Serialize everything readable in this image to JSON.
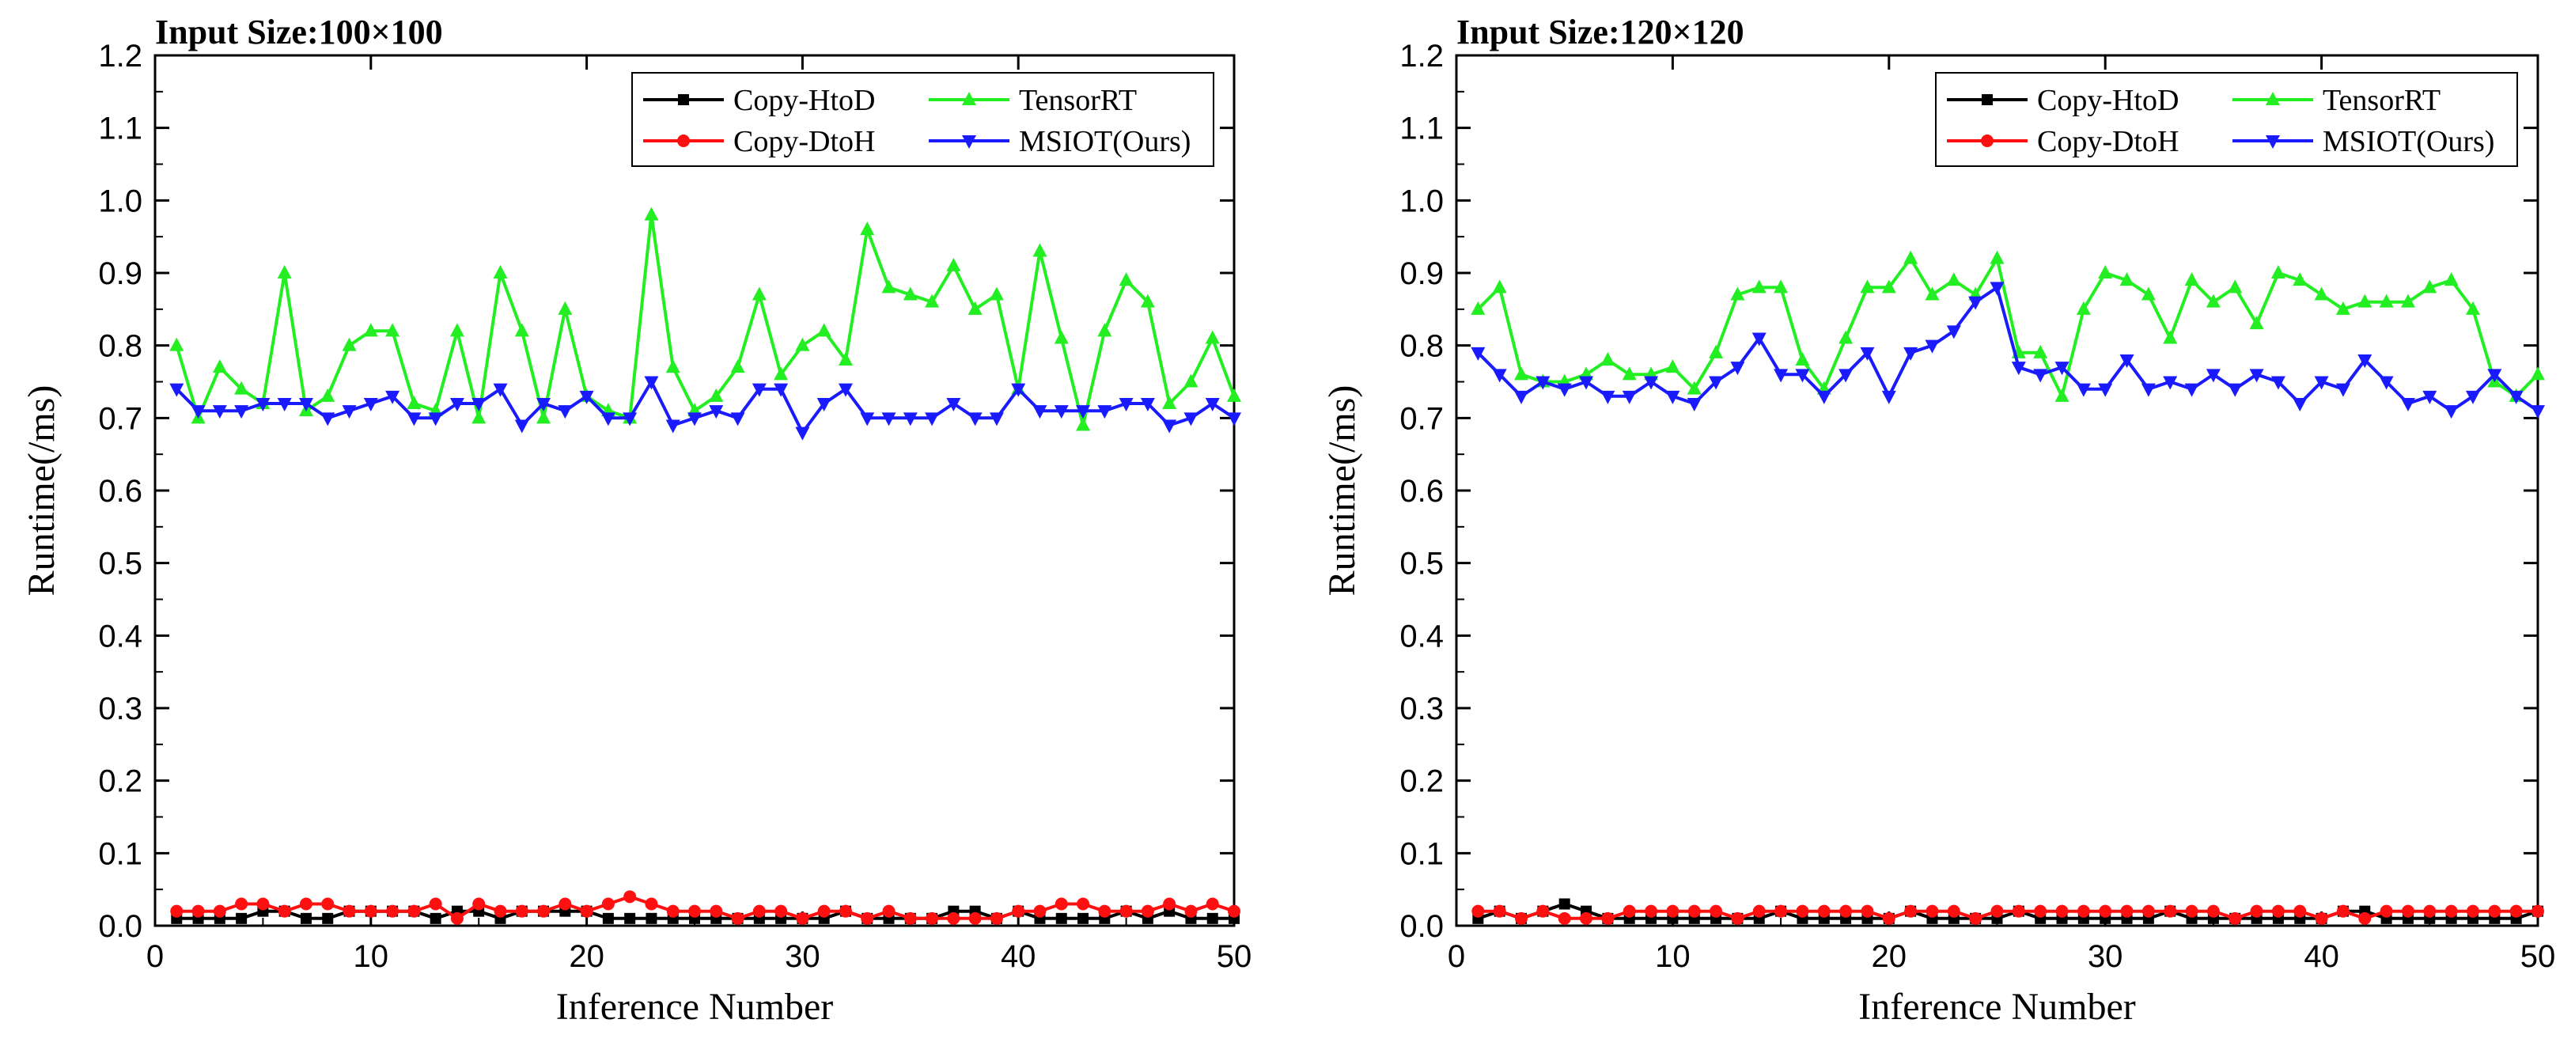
{
  "chart_data": [
    {
      "type": "line",
      "title": "Input Size:100×100",
      "xlabel": "Inference Number",
      "ylabel": "Runtime(/ms)",
      "xlim": [
        0,
        50
      ],
      "ylim": [
        0.0,
        1.2
      ],
      "xticks": [
        0,
        10,
        20,
        30,
        40,
        50
      ],
      "xtick_labels": [
        "0",
        "10",
        "20",
        "30",
        "40",
        "50"
      ],
      "yticks": [
        0.0,
        0.1,
        0.2,
        0.3,
        0.4,
        0.5,
        0.6,
        0.7,
        0.8,
        0.9,
        1.0,
        1.1,
        1.2
      ],
      "ytick_labels": [
        "0.0",
        "0.1",
        "0.2",
        "0.3",
        "0.4",
        "0.5",
        "0.6",
        "0.7",
        "0.8",
        "0.9",
        "1.0",
        "1.1",
        "1.2"
      ],
      "legend_position": "top-right",
      "legend_order": [
        0,
        2,
        1,
        3
      ],
      "x": [
        1,
        2,
        3,
        4,
        5,
        6,
        7,
        8,
        9,
        10,
        11,
        12,
        13,
        14,
        15,
        16,
        17,
        18,
        19,
        20,
        21,
        22,
        23,
        24,
        25,
        26,
        27,
        28,
        29,
        30,
        31,
        32,
        33,
        34,
        35,
        36,
        37,
        38,
        39,
        40,
        41,
        42,
        43,
        44,
        45,
        46,
        47,
        48,
        49,
        50
      ],
      "series": [
        {
          "name": "Copy-HtoD",
          "color": "#000000",
          "marker": "square",
          "values": [
            0.01,
            0.01,
            0.01,
            0.01,
            0.02,
            0.02,
            0.01,
            0.01,
            0.02,
            0.02,
            0.02,
            0.02,
            0.01,
            0.02,
            0.02,
            0.01,
            0.02,
            0.02,
            0.02,
            0.02,
            0.01,
            0.01,
            0.01,
            0.01,
            0.01,
            0.01,
            0.01,
            0.01,
            0.01,
            0.01,
            0.01,
            0.02,
            0.01,
            0.01,
            0.01,
            0.01,
            0.02,
            0.02,
            0.01,
            0.02,
            0.01,
            0.01,
            0.01,
            0.01,
            0.02,
            0.01,
            0.02,
            0.01,
            0.01,
            0.01
          ]
        },
        {
          "name": "TensorRT",
          "color": "#22ee22",
          "marker": "triangle-up",
          "values": [
            0.8,
            0.7,
            0.77,
            0.74,
            0.72,
            0.9,
            0.71,
            0.73,
            0.8,
            0.82,
            0.82,
            0.72,
            0.71,
            0.82,
            0.7,
            0.9,
            0.82,
            0.7,
            0.85,
            0.73,
            0.71,
            0.7,
            0.98,
            0.77,
            0.71,
            0.73,
            0.77,
            0.87,
            0.76,
            0.8,
            0.82,
            0.78,
            0.96,
            0.88,
            0.87,
            0.86,
            0.91,
            0.85,
            0.87,
            0.74,
            0.93,
            0.81,
            0.69,
            0.82,
            0.89,
            0.86,
            0.72,
            0.75,
            0.81,
            0.73
          ]
        },
        {
          "name": "Copy-DtoH",
          "color": "#ff1010",
          "marker": "circle",
          "values": [
            0.02,
            0.02,
            0.02,
            0.03,
            0.03,
            0.02,
            0.03,
            0.03,
            0.02,
            0.02,
            0.02,
            0.02,
            0.03,
            0.01,
            0.03,
            0.02,
            0.02,
            0.02,
            0.03,
            0.02,
            0.03,
            0.04,
            0.03,
            0.02,
            0.02,
            0.02,
            0.01,
            0.02,
            0.02,
            0.01,
            0.02,
            0.02,
            0.01,
            0.02,
            0.01,
            0.01,
            0.01,
            0.01,
            0.01,
            0.02,
            0.02,
            0.03,
            0.03,
            0.02,
            0.02,
            0.02,
            0.03,
            0.02,
            0.03,
            0.02
          ]
        },
        {
          "name": "MSIOT(Ours)",
          "color": "#1a1aff",
          "marker": "triangle-down",
          "values": [
            0.74,
            0.71,
            0.71,
            0.71,
            0.72,
            0.72,
            0.72,
            0.7,
            0.71,
            0.72,
            0.73,
            0.7,
            0.7,
            0.72,
            0.72,
            0.74,
            0.69,
            0.72,
            0.71,
            0.73,
            0.7,
            0.7,
            0.75,
            0.69,
            0.7,
            0.71,
            0.7,
            0.74,
            0.74,
            0.68,
            0.72,
            0.74,
            0.7,
            0.7,
            0.7,
            0.7,
            0.72,
            0.7,
            0.7,
            0.74,
            0.71,
            0.71,
            0.71,
            0.71,
            0.72,
            0.72,
            0.69,
            0.7,
            0.72,
            0.7
          ]
        }
      ]
    },
    {
      "type": "line",
      "title": "Input Size:120×120",
      "xlabel": "Inference Number",
      "ylabel": "Runtime(/ms)",
      "xlim": [
        0,
        50
      ],
      "ylim": [
        0.0,
        1.2
      ],
      "xticks": [
        0,
        10,
        20,
        30,
        40,
        50
      ],
      "xtick_labels": [
        "0",
        "10",
        "20",
        "30",
        "40",
        "50"
      ],
      "yticks": [
        0.0,
        0.1,
        0.2,
        0.3,
        0.4,
        0.5,
        0.6,
        0.7,
        0.8,
        0.9,
        1.0,
        1.1,
        1.2
      ],
      "ytick_labels": [
        "0.0",
        "0.1",
        "0.2",
        "0.3",
        "0.4",
        "0.5",
        "0.6",
        "0.7",
        "0.8",
        "0.9",
        "1.0",
        "1.1",
        "1.2"
      ],
      "legend_position": "top-right",
      "legend_order": [
        0,
        2,
        1,
        3
      ],
      "x": [
        1,
        2,
        3,
        4,
        5,
        6,
        7,
        8,
        9,
        10,
        11,
        12,
        13,
        14,
        15,
        16,
        17,
        18,
        19,
        20,
        21,
        22,
        23,
        24,
        25,
        26,
        27,
        28,
        29,
        30,
        31,
        32,
        33,
        34,
        35,
        36,
        37,
        38,
        39,
        40,
        41,
        42,
        43,
        44,
        45,
        46,
        47,
        48,
        49,
        50
      ],
      "series": [
        {
          "name": "Copy-HtoD",
          "color": "#000000",
          "marker": "square",
          "values": [
            0.01,
            0.02,
            0.01,
            0.02,
            0.03,
            0.02,
            0.01,
            0.01,
            0.01,
            0.01,
            0.01,
            0.01,
            0.01,
            0.01,
            0.02,
            0.01,
            0.01,
            0.01,
            0.01,
            0.01,
            0.02,
            0.01,
            0.01,
            0.01,
            0.01,
            0.02,
            0.01,
            0.01,
            0.01,
            0.01,
            0.01,
            0.01,
            0.02,
            0.01,
            0.01,
            0.01,
            0.01,
            0.01,
            0.01,
            0.01,
            0.02,
            0.02,
            0.01,
            0.01,
            0.01,
            0.01,
            0.01,
            0.01,
            0.01,
            0.02
          ]
        },
        {
          "name": "TensorRT",
          "color": "#22ee22",
          "marker": "triangle-up",
          "values": [
            0.85,
            0.88,
            0.76,
            0.75,
            0.75,
            0.76,
            0.78,
            0.76,
            0.76,
            0.77,
            0.74,
            0.79,
            0.87,
            0.88,
            0.88,
            0.78,
            0.74,
            0.81,
            0.88,
            0.88,
            0.92,
            0.87,
            0.89,
            0.87,
            0.92,
            0.79,
            0.79,
            0.73,
            0.85,
            0.9,
            0.89,
            0.87,
            0.81,
            0.89,
            0.86,
            0.88,
            0.83,
            0.9,
            0.89,
            0.87,
            0.85,
            0.86,
            0.86,
            0.86,
            0.88,
            0.89,
            0.85,
            0.75,
            0.73,
            0.76
          ]
        },
        {
          "name": "Copy-DtoH",
          "color": "#ff1010",
          "marker": "circle",
          "values": [
            0.02,
            0.02,
            0.01,
            0.02,
            0.01,
            0.01,
            0.01,
            0.02,
            0.02,
            0.02,
            0.02,
            0.02,
            0.01,
            0.02,
            0.02,
            0.02,
            0.02,
            0.02,
            0.02,
            0.01,
            0.02,
            0.02,
            0.02,
            0.01,
            0.02,
            0.02,
            0.02,
            0.02,
            0.02,
            0.02,
            0.02,
            0.02,
            0.02,
            0.02,
            0.02,
            0.01,
            0.02,
            0.02,
            0.02,
            0.01,
            0.02,
            0.01,
            0.02,
            0.02,
            0.02,
            0.02,
            0.02,
            0.02,
            0.02,
            0.02
          ]
        },
        {
          "name": "MSIOT(Ours)",
          "color": "#1a1aff",
          "marker": "triangle-down",
          "values": [
            0.79,
            0.76,
            0.73,
            0.75,
            0.74,
            0.75,
            0.73,
            0.73,
            0.75,
            0.73,
            0.72,
            0.75,
            0.77,
            0.81,
            0.76,
            0.76,
            0.73,
            0.76,
            0.79,
            0.73,
            0.79,
            0.8,
            0.82,
            0.86,
            0.88,
            0.77,
            0.76,
            0.77,
            0.74,
            0.74,
            0.78,
            0.74,
            0.75,
            0.74,
            0.76,
            0.74,
            0.76,
            0.75,
            0.72,
            0.75,
            0.74,
            0.78,
            0.75,
            0.72,
            0.73,
            0.71,
            0.73,
            0.76,
            0.73,
            0.71
          ]
        }
      ]
    }
  ]
}
